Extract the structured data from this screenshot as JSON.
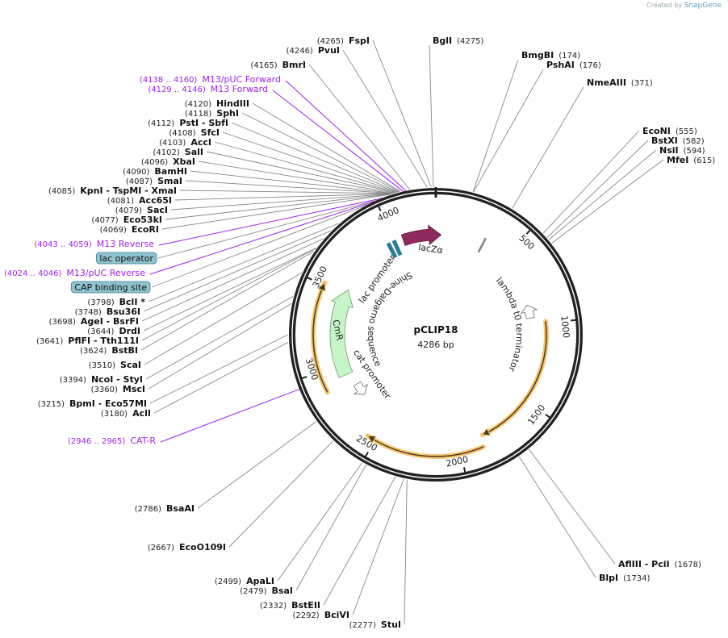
{
  "credit": {
    "prefix": "Created by",
    "brand": "SnapGene"
  },
  "map": {
    "name": "pCLIP18",
    "size": "4286 bp",
    "length_bp": 4286
  },
  "ticks": [
    500,
    1000,
    1500,
    2000,
    2500,
    3000,
    3500,
    4000
  ],
  "sites": [
    {
      "pos": "(4265)",
      "name": "FspI",
      "bp": 4265
    },
    {
      "pos": "(4246)",
      "name": "PvuI",
      "bp": 4246
    },
    {
      "pos": "(4165)",
      "name": "BmrI",
      "bp": 4165
    },
    {
      "pos": "(4120)",
      "name": "HindIII",
      "bp": 4120
    },
    {
      "pos": "(4118)",
      "name": "SphI",
      "bp": 4118
    },
    {
      "pos": "(4112)",
      "name": "PstI  - SbfI",
      "bp": 4112
    },
    {
      "pos": "(4108)",
      "name": "SfcI",
      "bp": 4108
    },
    {
      "pos": "(4103)",
      "name": "AccI",
      "bp": 4103
    },
    {
      "pos": "(4102)",
      "name": "SalI",
      "bp": 4102
    },
    {
      "pos": "(4096)",
      "name": "XbaI",
      "bp": 4096
    },
    {
      "pos": "(4090)",
      "name": "BamHI",
      "bp": 4090
    },
    {
      "pos": "(4087)",
      "name": "SmaI",
      "bp": 4087
    },
    {
      "pos": "(4085)",
      "name": "KpnI  - TspMI  - XmaI",
      "bp": 4085
    },
    {
      "pos": "(4081)",
      "name": "Acc65I",
      "bp": 4081
    },
    {
      "pos": "(4079)",
      "name": "SacI",
      "bp": 4079
    },
    {
      "pos": "(4077)",
      "name": "Eco53kI",
      "bp": 4077
    },
    {
      "pos": "(4069)",
      "name": "EcoRI",
      "bp": 4069
    },
    {
      "pos": "(3798)",
      "name": "BclI *",
      "bp": 3798
    },
    {
      "pos": "(3748)",
      "name": "Bsu36I",
      "bp": 3748
    },
    {
      "pos": "(3698)",
      "name": "AgeI  - BsrFI",
      "bp": 3698
    },
    {
      "pos": "(3644)",
      "name": "DrdI",
      "bp": 3644
    },
    {
      "pos": "(3641)",
      "name": "PflFI  - Tth111I",
      "bp": 3641
    },
    {
      "pos": "(3624)",
      "name": "BstBI",
      "bp": 3624
    },
    {
      "pos": "(3510)",
      "name": "ScaI",
      "bp": 3510
    },
    {
      "pos": "(3394)",
      "name": "NcoI  - StyI",
      "bp": 3394
    },
    {
      "pos": "(3360)",
      "name": "MscI",
      "bp": 3360
    },
    {
      "pos": "(3215)",
      "name": "BpmI  - Eco57MI",
      "bp": 3215
    },
    {
      "pos": "(3180)",
      "name": "AclI",
      "bp": 3180
    },
    {
      "pos": "(2786)",
      "name": "BsaAI",
      "bp": 2786
    },
    {
      "pos": "(2667)",
      "name": "EcoO109I",
      "bp": 2667
    },
    {
      "pos": "(2499)",
      "name": "ApaLI",
      "bp": 2499
    },
    {
      "pos": "(2479)",
      "name": "BsaI",
      "bp": 2479
    },
    {
      "pos": "(2332)",
      "name": "BstEII",
      "bp": 2332
    },
    {
      "pos": "(2292)",
      "name": "BciVI",
      "bp": 2292
    },
    {
      "pos": "(2277)",
      "name": "StuI",
      "bp": 2277
    },
    {
      "pos": "(4275)",
      "name": "BglI",
      "bp": 4275
    },
    {
      "pos": "(174)",
      "name": "BmgBI",
      "bp": 174
    },
    {
      "pos": "(176)",
      "name": "PshAI",
      "bp": 176
    },
    {
      "pos": "(371)",
      "name": "NmeAIII",
      "bp": 371
    },
    {
      "pos": "(555)",
      "name": "EcoNI",
      "bp": 555
    },
    {
      "pos": "(582)",
      "name": "BstXI",
      "bp": 582
    },
    {
      "pos": "(594)",
      "name": "NsiI",
      "bp": 594
    },
    {
      "pos": "(615)",
      "name": "MfeI",
      "bp": 615
    },
    {
      "pos": "(1678)",
      "name": "AflIII  - PciI",
      "bp": 1678
    },
    {
      "pos": "(1734)",
      "name": "BlpI",
      "bp": 1734
    }
  ],
  "primers": [
    {
      "pos": "(4138 .. 4160)",
      "name": "M13/pUC Forward",
      "bp": 4149
    },
    {
      "pos": "(4129 .. 4146)",
      "name": "M13 Forward",
      "bp": 4137
    },
    {
      "pos": "(4043 .. 4059)",
      "name": "M13 Reverse",
      "bp": 4051
    },
    {
      "pos": "(4024 .. 4046)",
      "name": "M13/pUC Reverse",
      "bp": 4035
    },
    {
      "pos": "(2946 .. 2965)",
      "name": "CAT-R",
      "bp": 2955
    }
  ],
  "boxed_features": [
    {
      "name": "lac operator",
      "bp": 4030
    },
    {
      "name": "CAP binding site",
      "bp": 3990
    }
  ],
  "inner_labels": {
    "lacZa": "lacZα",
    "lac_promoter": "lac promoter",
    "shine_dalgarno": "Shine-Dalgarno sequence",
    "lambda_t0": "lambda t0 terminator",
    "cmr": "CmR",
    "cat_promoter": "cat promoter"
  },
  "colors": {
    "primer": "#a020f0",
    "lacZa": "#8e2a5e",
    "cmr": "#c8f5c8",
    "orange": "#f7c66f",
    "box": "#8fc3d0"
  }
}
